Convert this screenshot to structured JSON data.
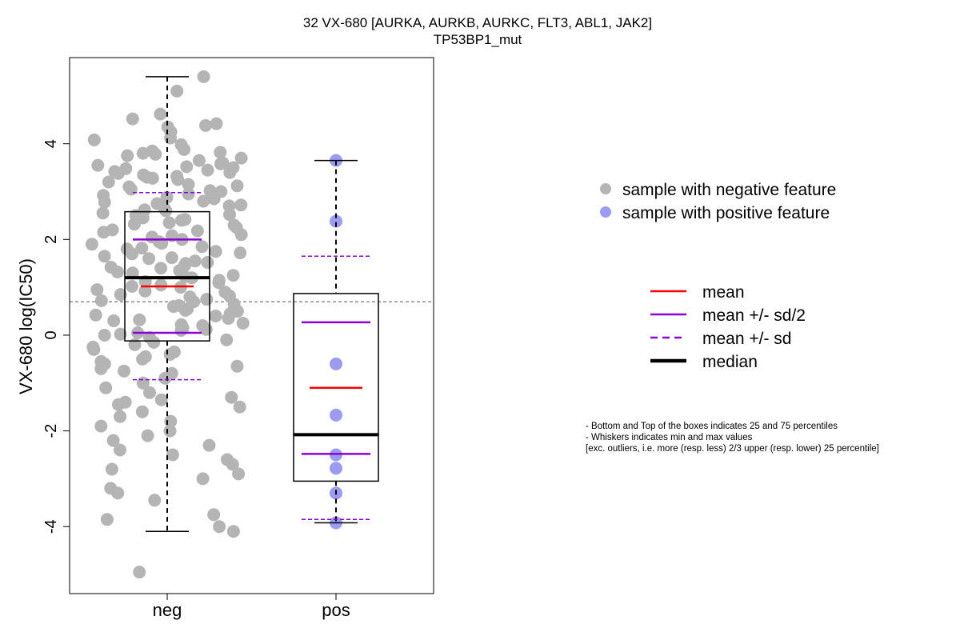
{
  "chart_data": {
    "type": "box",
    "title": "32 VX-680 [AURKA, AURKB, AURKC, FLT3, ABL1, JAK2]",
    "subtitle": "TP53BP1_mut",
    "ylabel": "VX-680 log(IC50)",
    "categories": [
      "neg",
      "pos"
    ],
    "ylim": [
      -5.4,
      5.8
    ],
    "yticks": [
      -4,
      -2,
      0,
      2,
      4
    ],
    "reference_line": 0.7,
    "boxes": [
      {
        "category": "neg",
        "whisker_min": -4.1,
        "q1": -0.12,
        "median": 1.2,
        "q3": 2.58,
        "whisker_max": 5.4,
        "mean": 1.02,
        "mean_minus_half_sd": 0.05,
        "mean_plus_half_sd": 2.0,
        "mean_minus_sd": -0.93,
        "mean_plus_sd": 2.98
      },
      {
        "category": "pos",
        "whisker_min": -3.92,
        "q1": -3.05,
        "median": -2.08,
        "q3": 0.87,
        "whisker_max": 3.65,
        "mean": -1.1,
        "mean_minus_half_sd": -2.48,
        "mean_plus_half_sd": 0.27,
        "mean_minus_sd": -3.85,
        "mean_plus_sd": 1.65
      }
    ],
    "series": [
      {
        "name": "sample with negative feature",
        "color": "#b4b4b4",
        "values": [
          5.4,
          5.1,
          4.62,
          4.52,
          4.42,
          4.38,
          4.35,
          4.25,
          4.12,
          4.08,
          3.98,
          3.88,
          3.85,
          3.82,
          3.8,
          3.78,
          3.75,
          3.7,
          3.65,
          3.6,
          3.58,
          3.55,
          3.52,
          3.5,
          3.48,
          3.45,
          3.42,
          3.4,
          3.38,
          3.35,
          3.32,
          3.3,
          3.28,
          3.25,
          3.2,
          3.15,
          3.12,
          3.1,
          3.05,
          3.02,
          3.0,
          2.95,
          2.92,
          2.88,
          2.85,
          2.8,
          2.78,
          2.75,
          2.72,
          2.7,
          2.65,
          2.62,
          2.6,
          2.55,
          2.52,
          2.5,
          2.45,
          2.42,
          2.4,
          2.35,
          2.32,
          2.3,
          2.25,
          2.2,
          2.18,
          2.15,
          2.1,
          2.08,
          2.05,
          2.0,
          1.95,
          1.92,
          1.9,
          1.85,
          1.82,
          1.8,
          1.75,
          1.72,
          1.7,
          1.65,
          1.62,
          1.6,
          1.55,
          1.52,
          1.5,
          1.45,
          1.42,
          1.4,
          1.35,
          1.32,
          1.3,
          1.25,
          1.22,
          1.2,
          1.15,
          1.12,
          1.1,
          1.05,
          1.02,
          1.0,
          0.95,
          0.92,
          0.9,
          0.85,
          0.82,
          0.8,
          0.75,
          0.72,
          0.7,
          0.65,
          0.62,
          0.6,
          0.55,
          0.52,
          0.5,
          0.45,
          0.42,
          0.4,
          0.35,
          0.32,
          0.3,
          0.25,
          0.22,
          0.2,
          0.15,
          0.12,
          0.1,
          0.05,
          0.02,
          0.0,
          -0.05,
          -0.1,
          -0.15,
          -0.2,
          -0.25,
          -0.3,
          -0.35,
          -0.4,
          -0.45,
          -0.5,
          -0.55,
          -0.6,
          -0.65,
          -0.7,
          -0.75,
          -0.8,
          -0.9,
          -1.0,
          -1.1,
          -1.2,
          -1.3,
          -1.35,
          -1.4,
          -1.45,
          -1.5,
          -1.6,
          -1.7,
          -1.8,
          -1.9,
          -2.0,
          -2.1,
          -2.2,
          -2.3,
          -2.4,
          -2.5,
          -2.6,
          -2.7,
          -2.8,
          -2.9,
          -3.0,
          -3.2,
          -3.3,
          -3.45,
          -3.75,
          -3.85,
          -4.0,
          -4.1,
          -4.95
        ]
      },
      {
        "name": "sample with positive feature",
        "color": "#9b9bf0",
        "values": [
          3.65,
          2.38,
          -0.6,
          -1.67,
          -2.5,
          -2.78,
          -3.3,
          -3.92
        ]
      }
    ],
    "legend_points": [
      "sample with negative feature",
      "sample with positive feature"
    ],
    "legend_lines": [
      {
        "label": "mean",
        "color": "#ff0000",
        "style": "solid"
      },
      {
        "label": "mean +/- sd/2",
        "color": "#8b00d8",
        "style": "solid"
      },
      {
        "label": "mean +/- sd",
        "color": "#8b00d8",
        "style": "dashed"
      },
      {
        "label": "median",
        "color": "#000000",
        "style": "thick"
      }
    ],
    "notes": [
      "- Bottom and Top of the boxes indicates 25 and 75 percentiles",
      "- Whiskers indicates min and max values",
      "[exc. outliers, i.e. more (resp. less) 2/3 upper (resp. lower) 25 percentile]"
    ]
  }
}
